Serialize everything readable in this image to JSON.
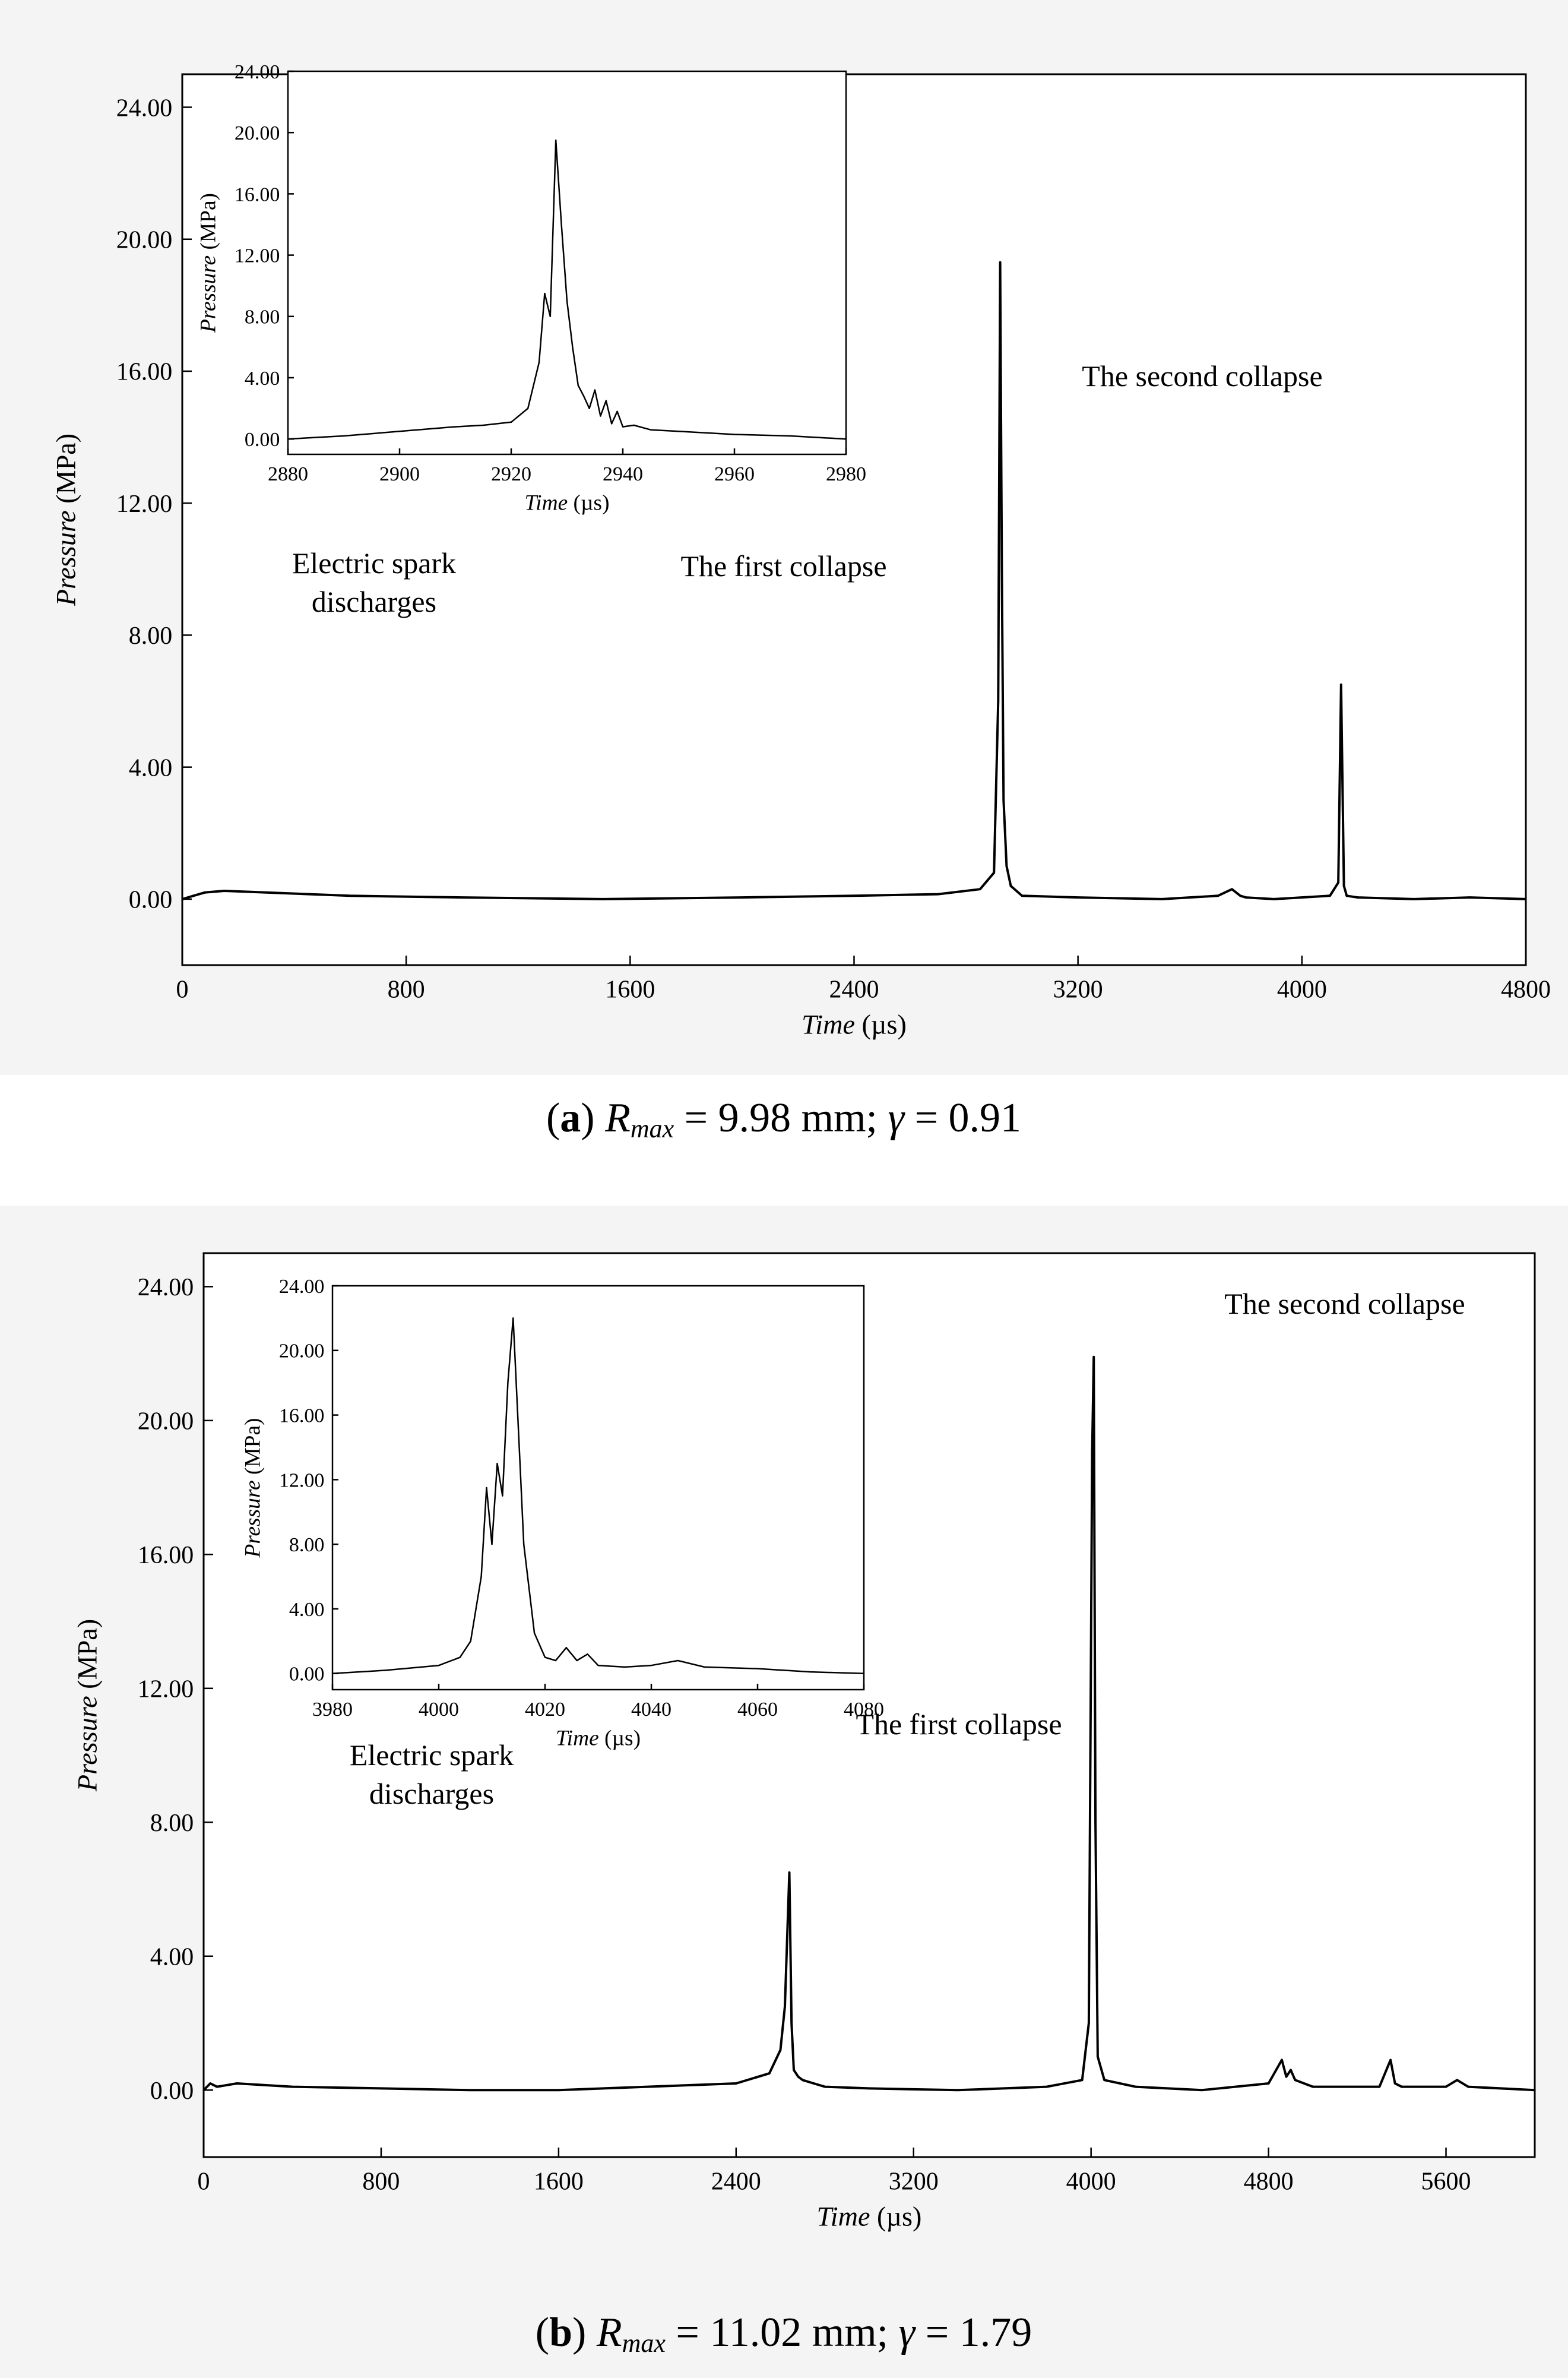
{
  "chart_data": [
    {
      "type": "line",
      "panel_label": "a",
      "caption": {
        "r_symbol": "R",
        "r_sub": "max",
        "r_value": "= 9.98 mm;",
        "gamma_symbol": "γ",
        "gamma_value": "= 0.91"
      },
      "xlabel": {
        "var": "Time",
        "unit": "(µs)"
      },
      "ylabel": {
        "var": "Pressure",
        "unit": "(MPa)"
      },
      "xlim": [
        0,
        4800
      ],
      "ylim": [
        -2,
        25
      ],
      "xticks": [
        "0",
        "800",
        "1600",
        "2400",
        "3200",
        "4000",
        "4800"
      ],
      "yticks": [
        "0.00",
        "4.00",
        "8.00",
        "12.00",
        "16.00",
        "20.00",
        "24.00"
      ],
      "x": [
        0,
        40,
        80,
        150,
        300,
        600,
        1000,
        1500,
        2000,
        2400,
        2700,
        2850,
        2900,
        2915,
        2922,
        2928,
        2934,
        2945,
        2960,
        3000,
        3200,
        3500,
        3700,
        3750,
        3780,
        3800,
        3900,
        4100,
        4130,
        4140,
        4150,
        4160,
        4200,
        4400,
        4600,
        4800
      ],
      "y": [
        0.0,
        0.1,
        0.2,
        0.25,
        0.2,
        0.1,
        0.05,
        0.0,
        0.05,
        0.1,
        0.15,
        0.3,
        0.8,
        6.0,
        19.3,
        10.0,
        3.0,
        1.0,
        0.4,
        0.1,
        0.05,
        0.0,
        0.1,
        0.3,
        0.1,
        0.05,
        0.0,
        0.1,
        0.5,
        6.5,
        0.4,
        0.1,
        0.05,
        0.0,
        0.05,
        0.0
      ],
      "annotations": [
        "Electric spark",
        "discharges",
        "The first collapse",
        "The second collapse"
      ],
      "inset": {
        "xlabel": {
          "var": "Time",
          "unit": "(µs)"
        },
        "ylabel": {
          "var": "Pressure",
          "unit": "(MPa)"
        },
        "xlim": [
          2880,
          2980
        ],
        "ylim": [
          -1,
          24
        ],
        "xticks": [
          "2880",
          "2900",
          "2920",
          "2940",
          "2960",
          "2980"
        ],
        "yticks": [
          "0.00",
          "4.00",
          "8.00",
          "12.00",
          "16.00",
          "20.00",
          "24.00"
        ],
        "x": [
          2880,
          2890,
          2900,
          2910,
          2915,
          2920,
          2923,
          2925,
          2926,
          2927,
          2928,
          2929,
          2930,
          2931,
          2932,
          2933,
          2934,
          2935,
          2936,
          2937,
          2938,
          2939,
          2940,
          2942,
          2945,
          2950,
          2955,
          2960,
          2970,
          2980
        ],
        "y": [
          0.0,
          0.2,
          0.5,
          0.8,
          0.9,
          1.1,
          2.0,
          5.0,
          9.5,
          8.0,
          19.5,
          14.0,
          9.0,
          6.0,
          3.5,
          2.8,
          2.0,
          3.2,
          1.5,
          2.5,
          1.0,
          1.8,
          0.8,
          0.9,
          0.6,
          0.5,
          0.4,
          0.3,
          0.2,
          0.0
        ]
      }
    },
    {
      "type": "line",
      "panel_label": "b",
      "caption": {
        "r_symbol": "R",
        "r_sub": "max",
        "r_value": "= 11.02 mm;",
        "gamma_symbol": "γ",
        "gamma_value": "= 1.79"
      },
      "xlabel": {
        "var": "Time",
        "unit": "(µs)"
      },
      "ylabel": {
        "var": "Pressure",
        "unit": "(MPa)"
      },
      "xlim": [
        0,
        6000
      ],
      "ylim": [
        -2,
        25
      ],
      "xticks": [
        "0",
        "800",
        "1600",
        "2400",
        "3200",
        "4000",
        "4800",
        "5600"
      ],
      "yticks": [
        "0.00",
        "4.00",
        "8.00",
        "12.00",
        "16.00",
        "20.00",
        "24.00"
      ],
      "x": [
        0,
        30,
        60,
        150,
        400,
        800,
        1200,
        1600,
        2000,
        2400,
        2550,
        2600,
        2620,
        2640,
        2650,
        2660,
        2680,
        2700,
        2750,
        2800,
        3000,
        3400,
        3800,
        3960,
        3990,
        4005,
        4012,
        4020,
        4030,
        4060,
        4200,
        4500,
        4800,
        4860,
        4880,
        4900,
        4920,
        5000,
        5300,
        5350,
        5370,
        5400,
        5600,
        5650,
        5700,
        6000
      ],
      "y": [
        0.0,
        0.2,
        0.1,
        0.2,
        0.1,
        0.05,
        0.0,
        0.0,
        0.1,
        0.2,
        0.5,
        1.2,
        2.5,
        6.5,
        2.0,
        0.6,
        0.4,
        0.3,
        0.2,
        0.1,
        0.05,
        0.0,
        0.1,
        0.3,
        2.0,
        19.0,
        21.9,
        8.0,
        1.0,
        0.3,
        0.1,
        0.0,
        0.2,
        0.9,
        0.4,
        0.6,
        0.3,
        0.1,
        0.1,
        0.9,
        0.2,
        0.1,
        0.1,
        0.3,
        0.1,
        0.0
      ],
      "annotations": [
        "Electric spark",
        "discharges",
        "The first collapse",
        "The second collapse"
      ],
      "inset": {
        "xlabel": {
          "var": "Time",
          "unit": "(µs)"
        },
        "ylabel": {
          "var": "Pressure",
          "unit": "(MPa)"
        },
        "xlim": [
          3980,
          4080
        ],
        "ylim": [
          -1,
          24
        ],
        "xticks": [
          "3980",
          "4000",
          "4020",
          "4040",
          "4060",
          "4080"
        ],
        "yticks": [
          "0.00",
          "4.00",
          "8.00",
          "12.00",
          "16.00",
          "20.00",
          "24.00"
        ],
        "x": [
          3980,
          3990,
          4000,
          4004,
          4006,
          4008,
          4009,
          4010,
          4011,
          4012,
          4013,
          4014,
          4015,
          4016,
          4018,
          4020,
          4022,
          4024,
          4026,
          4028,
          4030,
          4035,
          4040,
          4045,
          4050,
          4060,
          4070,
          4080
        ],
        "y": [
          0.0,
          0.2,
          0.5,
          1.0,
          2.0,
          6.0,
          11.5,
          8.0,
          13.0,
          11.0,
          18.0,
          22.0,
          15.0,
          8.0,
          2.5,
          1.0,
          0.8,
          1.6,
          0.8,
          1.2,
          0.5,
          0.4,
          0.5,
          0.8,
          0.4,
          0.3,
          0.1,
          0.0
        ]
      }
    }
  ]
}
